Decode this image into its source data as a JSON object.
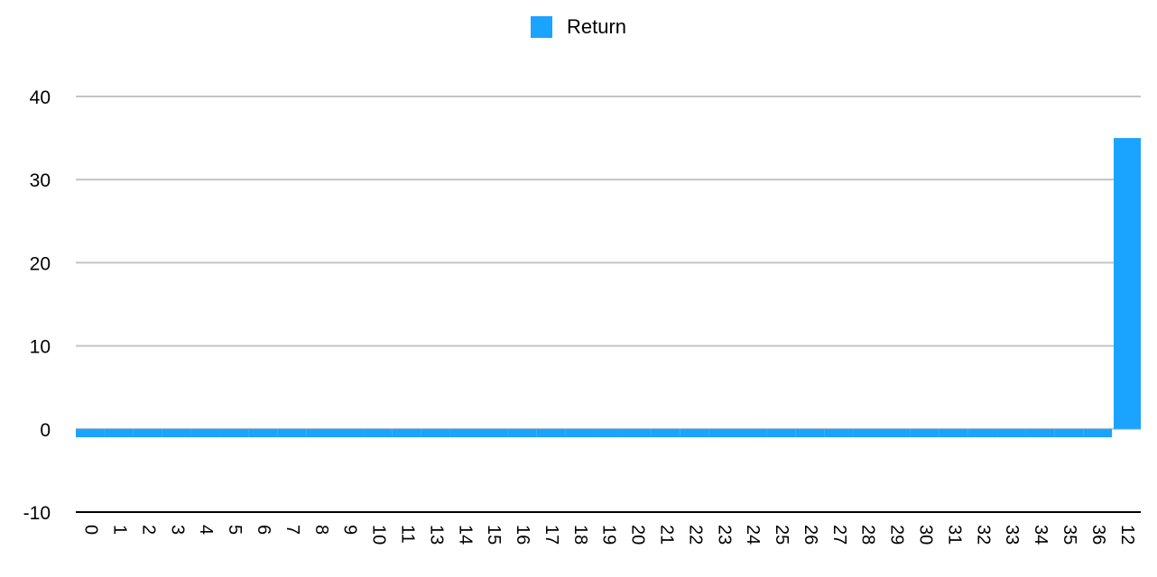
{
  "chart_data": {
    "type": "bar",
    "categories": [
      "0",
      "1",
      "2",
      "3",
      "4",
      "5",
      "6",
      "7",
      "8",
      "9",
      "10",
      "11",
      "13",
      "14",
      "15",
      "16",
      "17",
      "18",
      "19",
      "20",
      "21",
      "22",
      "23",
      "24",
      "25",
      "26",
      "27",
      "28",
      "29",
      "30",
      "31",
      "32",
      "33",
      "34",
      "35",
      "36",
      "12"
    ],
    "series": [
      {
        "name": "Return",
        "color": "#1aa3ff",
        "values": [
          -1,
          -1,
          -1,
          -1,
          -1,
          -1,
          -1,
          -1,
          -1,
          -1,
          -1,
          -1,
          -1,
          -1,
          -1,
          -1,
          -1,
          -1,
          -1,
          -1,
          -1,
          -1,
          -1,
          -1,
          -1,
          -1,
          -1,
          -1,
          -1,
          -1,
          -1,
          -1,
          -1,
          -1,
          -1,
          -1,
          35
        ]
      }
    ],
    "ylim": [
      -10,
      40
    ],
    "yticks": [
      -10,
      0,
      10,
      20,
      30,
      40
    ],
    "grid": true,
    "legend_position": "top-center",
    "title": "",
    "xlabel": "",
    "ylabel": ""
  }
}
